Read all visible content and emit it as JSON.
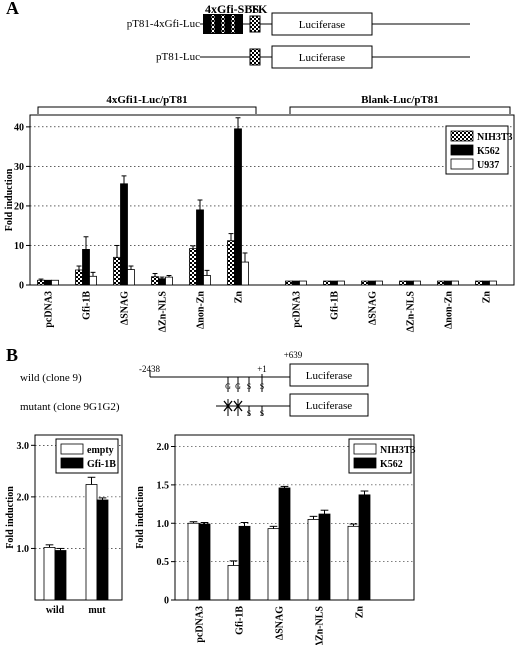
{
  "panel_a": {
    "letter": "A",
    "constructs": [
      {
        "name": "pT81-4xGfi-Luc",
        "luciferase": "Luciferase"
      },
      {
        "name": "pT81-Luc",
        "luciferase": "Luciferase"
      }
    ],
    "sbs_label": "4xGfi-SBS",
    "tk_label": "TK",
    "group_labels": [
      "4xGfi1-Luc/pT81",
      "Blank-Luc/pT81"
    ]
  },
  "panel_b": {
    "letter": "B",
    "promoter": {
      "wild_label": "wild (clone 9)",
      "mutant_label": "mutant (clone 9G1G2)",
      "pos_start": "-2438",
      "pos_plus1": "+1",
      "pos_end": "+639",
      "luciferase": "Luciferase",
      "site_letters": [
        "G",
        "G",
        "S",
        "S"
      ]
    }
  },
  "chart_data": [
    {
      "type": "bar",
      "id": "A",
      "ylabel": "Fold induction",
      "ylim": [
        0,
        43
      ],
      "yticks": [
        "0",
        "10",
        "20",
        "30",
        "40"
      ],
      "grid": "dotted horizontal",
      "legend_position": "top-right",
      "categories": [
        "pcDNA3",
        "Gfi-1B",
        "ΔSNAG",
        "ΔZn-NLS",
        "Δnon-Zn",
        "Zn",
        "pcDNA3",
        "Gfi-1B",
        "ΔSNAG",
        "ΔZn-NLS",
        "Δnon-Zn",
        "Zn"
      ],
      "series": [
        {
          "name": "NIH3T3",
          "pattern": "checker",
          "values": [
            1.2,
            3.8,
            7.0,
            2.1,
            9.2,
            11.2,
            1.0,
            1.0,
            1.0,
            1.0,
            1.0,
            1.0
          ],
          "errors": [
            0.3,
            1.0,
            3.0,
            0.8,
            0.7,
            1.8,
            0,
            0,
            0,
            0,
            0,
            0
          ]
        },
        {
          "name": "K562",
          "pattern": "solid",
          "values": [
            1.2,
            9.0,
            25.6,
            1.6,
            19.0,
            39.5,
            1.0,
            1.0,
            1.0,
            1.0,
            1.0,
            1.0
          ],
          "errors": [
            0,
            3.2,
            2.0,
            0.4,
            2.5,
            2.8,
            0,
            0,
            0,
            0,
            0,
            0
          ]
        },
        {
          "name": "U937",
          "pattern": "white",
          "values": [
            1.2,
            2.2,
            3.9,
            2.0,
            2.4,
            5.8,
            1.0,
            1.0,
            1.0,
            1.0,
            1.0,
            1.0
          ],
          "errors": [
            0,
            1.0,
            0.9,
            0.4,
            1.3,
            2.3,
            0,
            0,
            0,
            0,
            0,
            0
          ]
        }
      ]
    },
    {
      "type": "bar",
      "id": "B-left",
      "ylabel": "Fold induction",
      "ylim": [
        0,
        3.2
      ],
      "yticks": [
        "1.0",
        "2.0",
        "3.0"
      ],
      "grid": "dotted horizontal",
      "legend_position": "top-right",
      "categories": [
        "wild",
        "mut"
      ],
      "series": [
        {
          "name": "empty",
          "pattern": "white",
          "values": [
            1.02,
            2.24
          ],
          "errors": [
            0.05,
            0.14
          ]
        },
        {
          "name": "Gfi-1B",
          "pattern": "solid",
          "values": [
            0.96,
            1.94
          ],
          "errors": [
            0.04,
            0.04
          ]
        }
      ]
    },
    {
      "type": "bar",
      "id": "B-right",
      "ylabel": "Fold induction",
      "ylim": [
        0,
        2.15
      ],
      "yticks": [
        "0",
        "0.5",
        "1.0",
        "1.5",
        "2.0"
      ],
      "grid": "dotted horizontal",
      "legend_position": "top-right",
      "categories": [
        "pcDNA3",
        "Gfi-1B",
        "ΔSNAG",
        "ΔZn-NLS",
        "Zn"
      ],
      "series": [
        {
          "name": "NIH3T3",
          "pattern": "white",
          "values": [
            1.0,
            0.45,
            0.93,
            1.05,
            0.96
          ],
          "errors": [
            0.02,
            0.06,
            0.03,
            0.04,
            0.03
          ]
        },
        {
          "name": "K562",
          "pattern": "solid",
          "values": [
            0.99,
            0.96,
            1.46,
            1.12,
            1.37
          ],
          "errors": [
            0.02,
            0.05,
            0.02,
            0.05,
            0.05
          ]
        }
      ]
    }
  ]
}
